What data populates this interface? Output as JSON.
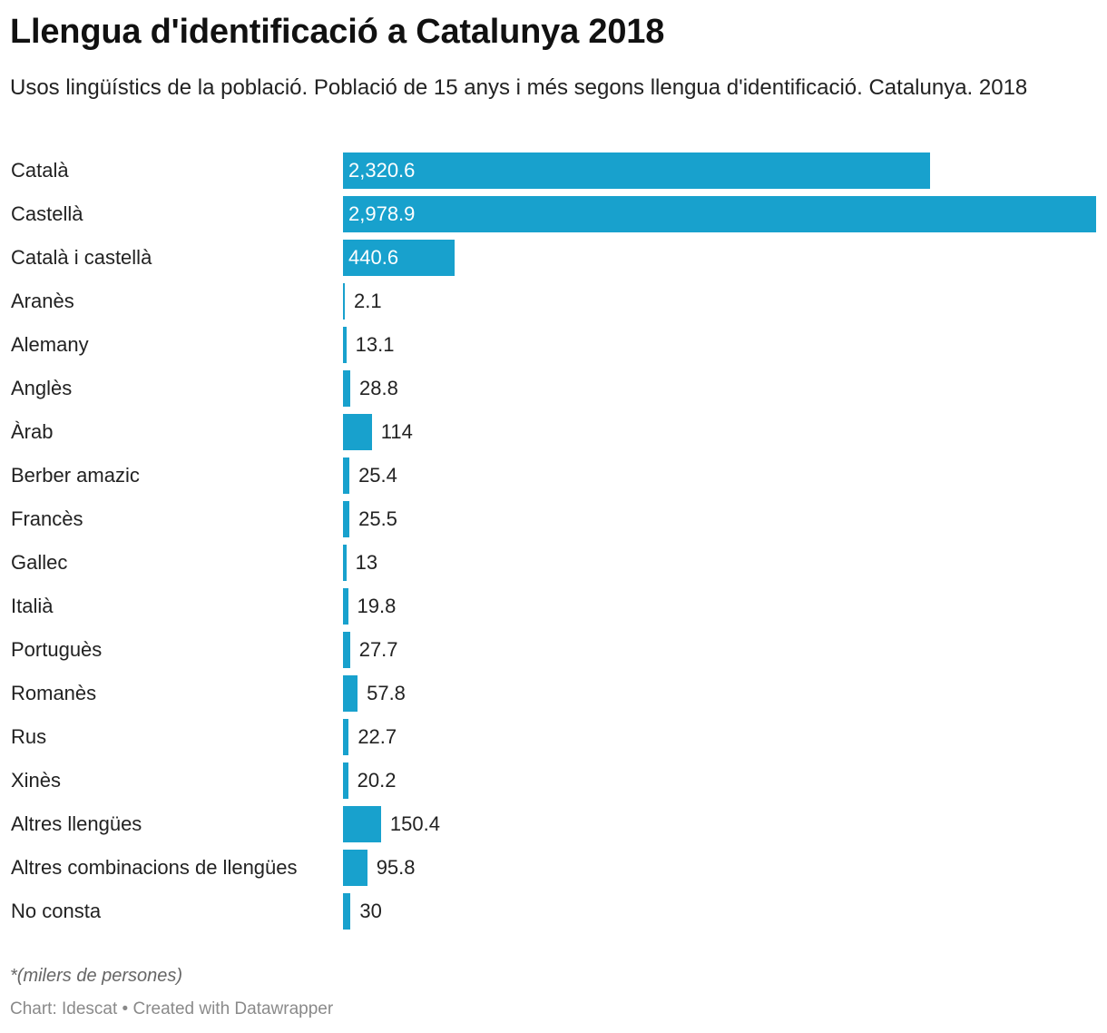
{
  "chart_data": {
    "type": "bar",
    "orientation": "horizontal",
    "title": "Llengua d'identificació a Catalunya 2018",
    "subtitle": "Usos lingüístics de la població. Població de 15 anys i més segons llengua d'identificació. Catalunya. 2018",
    "categories": [
      "Català",
      "Castellà",
      "Català i castellà",
      "Aranès",
      "Alemany",
      "Anglès",
      "Àrab",
      "Berber amazic",
      "Francès",
      "Gallec",
      "Italià",
      "Portuguès",
      "Romanès",
      "Rus",
      "Xinès",
      "Altres llengües",
      "Altres combinacions de llengües",
      "No consta"
    ],
    "values": [
      2320.6,
      2978.9,
      440.6,
      2.1,
      13.1,
      28.8,
      114,
      25.4,
      25.5,
      13,
      19.8,
      27.7,
      57.8,
      22.7,
      20.2,
      150.4,
      95.8,
      30
    ],
    "value_labels": [
      "2,320.6",
      "2,978.9",
      "440.6",
      "2.1",
      "13.1",
      "28.8",
      "114",
      "25.4",
      "25.5",
      "13",
      "19.8",
      "27.7",
      "57.8",
      "22.7",
      "20.2",
      "150.4",
      "95.8",
      "30"
    ],
    "xlim": [
      0,
      2978.9
    ],
    "xlabel": "",
    "ylabel": "",
    "grid": false,
    "color": "#18a1cd",
    "note": "*(milers de persones)",
    "source": "Chart: Idescat • Created with Datawrapper"
  }
}
